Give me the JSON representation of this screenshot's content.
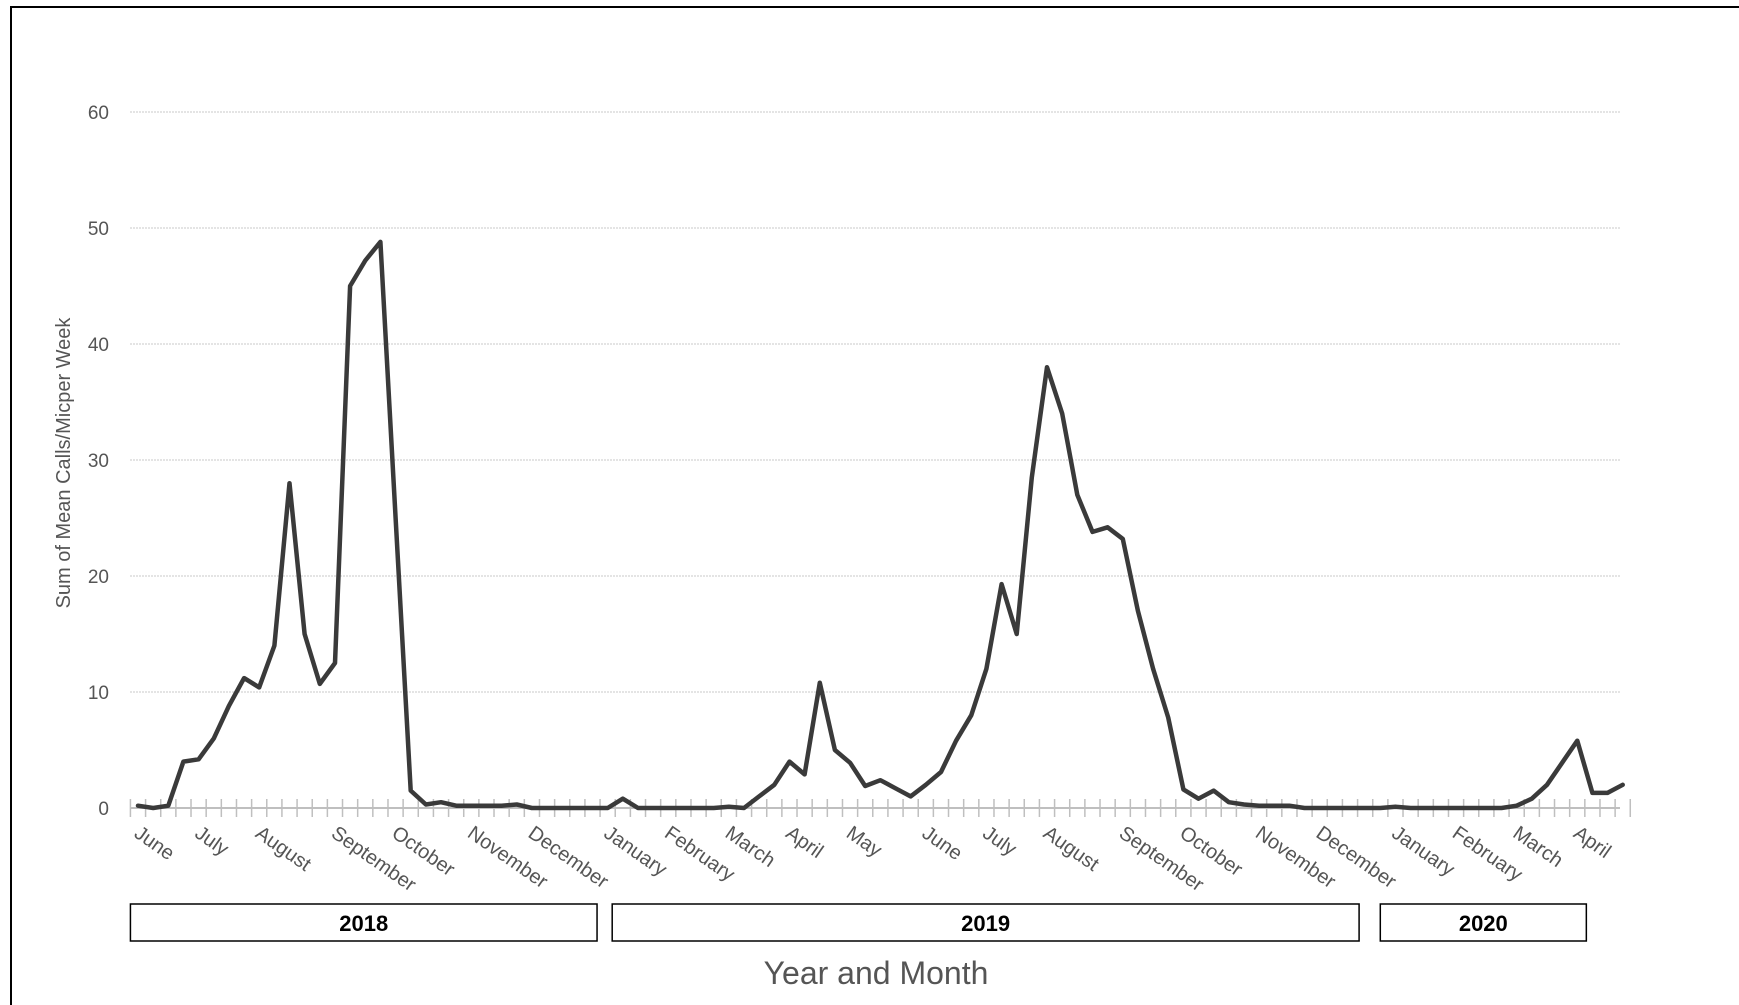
{
  "chart_data": {
    "type": "line",
    "xlabel": "Year and Month",
    "ylabel": "Sum of Mean Calls/Micper Week",
    "ylim": [
      0,
      60
    ],
    "yticks": [
      0,
      10,
      20,
      30,
      40,
      50,
      60
    ],
    "grid": true,
    "legend": "none",
    "line_color": "#3a3a3a",
    "grid_color": "#c8c8c8",
    "months": [
      "June",
      "July",
      "August",
      "September",
      "October",
      "November",
      "December",
      "January",
      "February",
      "March",
      "April",
      "May",
      "June",
      "July",
      "August",
      "September",
      "October",
      "November",
      "December",
      "January",
      "February",
      "March",
      "April"
    ],
    "month_week_index": [
      0,
      4,
      8,
      13,
      17,
      22,
      26,
      31,
      35,
      39,
      43,
      47,
      52,
      56,
      60,
      65,
      69,
      74,
      78,
      83,
      87,
      91,
      95
    ],
    "years": [
      {
        "label": "2018",
        "start_week": -0.5,
        "end_week": 30.3
      },
      {
        "label": "2019",
        "start_week": 31.3,
        "end_week": 80.6
      },
      {
        "label": "2020",
        "start_week": 82.0,
        "end_week": 95.6
      }
    ],
    "series": [
      {
        "values": [
          0.2,
          0,
          0.2,
          4,
          4.2,
          6,
          8.8,
          11.2,
          10.4,
          14,
          28,
          15,
          10.7,
          12.5,
          45,
          47.2,
          48.8,
          25,
          1.5,
          0.3,
          0.5,
          0.2,
          0.2,
          0.2,
          0.2,
          0.3,
          0,
          0,
          0,
          0,
          0,
          0,
          0.8,
          0,
          0,
          0,
          0,
          0,
          0,
          0.1,
          0,
          1,
          2,
          4,
          2.9,
          10.8,
          5,
          3.9,
          1.9,
          2.4,
          1.7,
          1,
          2,
          3.1,
          5.8,
          8,
          12,
          19.3,
          15,
          28.5,
          38,
          34,
          27,
          23.8,
          24.2,
          23.2,
          17,
          12,
          7.8,
          1.6,
          0.8,
          1.5,
          0.5,
          0.3,
          0.2,
          0.2,
          0.2,
          0,
          0,
          0,
          0,
          0,
          0,
          0.1,
          0,
          0,
          0,
          0,
          0,
          0,
          0,
          0.2,
          0.8,
          2,
          3.9,
          5.8,
          1.3,
          1.3,
          2
        ]
      }
    ]
  }
}
